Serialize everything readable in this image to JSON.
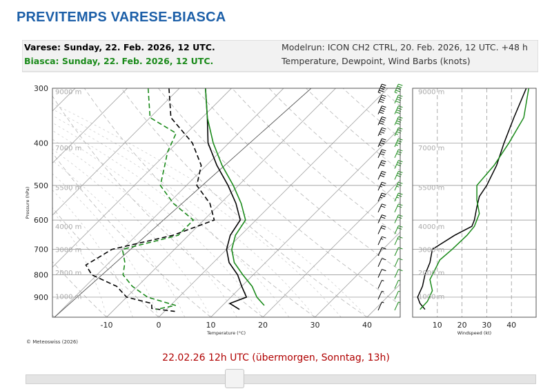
{
  "header": {
    "title": "PREVITEMPS VARESE-BIASCA"
  },
  "info": {
    "line1": "Varese: Sunday, 22. Feb. 2026, 12 UTC.",
    "line2": "Biasca: Sunday, 22. Feb. 2026, 12 UTC.",
    "model": "Modelrun: ICON CH2 CTRL, 20. Feb. 2026, 12 UTC. +48 h",
    "desc": "Temperature, Dewpoint, Wind Barbs (knots)"
  },
  "colors": {
    "varese": "#000000",
    "biasca": "#1a8a1a",
    "title": "#1c5fa8",
    "slider_caption": "#b00000"
  },
  "chart_data": [
    {
      "type": "line",
      "title": "",
      "xlabel": "Temperature (°C)",
      "ylabel": "Pressure (hPa)",
      "y_scale": "log",
      "xlim": [
        -20,
        47
      ],
      "ylim": [
        1000,
        300
      ],
      "x_ticks": [
        -10,
        0,
        10,
        20,
        30,
        40
      ],
      "y_ticks": [
        300,
        400,
        500,
        600,
        700,
        800,
        900
      ],
      "height_labels": [
        "9000 m",
        "7000 m",
        "5500 m",
        "4000 m",
        "3000 m",
        "2000 m",
        "1000 m"
      ],
      "height_pressures": [
        305,
        410,
        505,
        620,
        700,
        790,
        895
      ],
      "series": [
        {
          "name": "Varese",
          "kind": "temperature",
          "color": "#000000",
          "points": [
            [
              300,
              -35
            ],
            [
              350,
              -29
            ],
            [
              400,
              -24
            ],
            [
              450,
              -18
            ],
            [
              500,
              -12
            ],
            [
              550,
              -7
            ],
            [
              600,
              -3
            ],
            [
              650,
              -2
            ],
            [
              700,
              0
            ],
            [
              750,
              3
            ],
            [
              800,
              7
            ],
            [
              850,
              10
            ],
            [
              900,
              13
            ],
            [
              930,
              11
            ],
            [
              960,
              14
            ]
          ]
        },
        {
          "name": "Varese",
          "kind": "dewpoint",
          "color": "#000000",
          "points": [
            [
              300,
              -42
            ],
            [
              350,
              -36
            ],
            [
              400,
              -27
            ],
            [
              450,
              -21
            ],
            [
              500,
              -18
            ],
            [
              550,
              -12
            ],
            [
              600,
              -8
            ],
            [
              650,
              -13
            ],
            [
              700,
              -22
            ],
            [
              760,
              -24
            ],
            [
              800,
              -21
            ],
            [
              850,
              -14
            ],
            [
              900,
              -10
            ],
            [
              930,
              -4
            ],
            [
              955,
              -3
            ],
            [
              970,
              2
            ]
          ]
        },
        {
          "name": "Biasca",
          "kind": "temperature",
          "color": "#1a8a1a",
          "points": [
            [
              300,
              -35
            ],
            [
              350,
              -29
            ],
            [
              400,
              -23
            ],
            [
              450,
              -17
            ],
            [
              500,
              -11
            ],
            [
              550,
              -6
            ],
            [
              600,
              -2
            ],
            [
              650,
              -1
            ],
            [
              700,
              1
            ],
            [
              750,
              4
            ],
            [
              800,
              8
            ],
            [
              850,
              12
            ],
            [
              900,
              15
            ],
            [
              940,
              18
            ]
          ]
        },
        {
          "name": "Biasca",
          "kind": "dewpoint",
          "color": "#1a8a1a",
          "points": [
            [
              300,
              -46
            ],
            [
              350,
              -40
            ],
            [
              380,
              -32
            ],
            [
              420,
              -30
            ],
            [
              450,
              -28
            ],
            [
              500,
              -25
            ],
            [
              550,
              -19
            ],
            [
              600,
              -12
            ],
            [
              650,
              -12
            ],
            [
              700,
              -20
            ],
            [
              750,
              -17
            ],
            [
              800,
              -15
            ],
            [
              850,
              -11
            ],
            [
              900,
              -6
            ],
            [
              940,
              1
            ],
            [
              960,
              -2
            ]
          ]
        }
      ],
      "wind_barbs": {
        "varese_speeds_kt": [
          45,
          42,
          40,
          38,
          36,
          34,
          32,
          30,
          28,
          27,
          25,
          22,
          20,
          18,
          15,
          12,
          10,
          8,
          6,
          5,
          3
        ],
        "biasca_speeds_kt": [
          44,
          42,
          40,
          38,
          36,
          34,
          32,
          30,
          28,
          26,
          24,
          22,
          20,
          18,
          15,
          12,
          10,
          8,
          6,
          4,
          3
        ]
      },
      "footer": "© Meteoswiss (2026)"
    },
    {
      "type": "line",
      "title": "",
      "xlabel": "Windspeed (kt)",
      "ylabel": "",
      "y_scale": "log",
      "xlim": [
        0,
        50
      ],
      "ylim": [
        1000,
        300
      ],
      "x_ticks": [
        10,
        20,
        30,
        40
      ],
      "height_labels": [
        "9000 m",
        "7000 m",
        "5500 m",
        "4000 m",
        "3000 m",
        "2000 m",
        "1000 m"
      ],
      "series": [
        {
          "name": "Varese",
          "color": "#000000",
          "points": [
            [
              300,
              46
            ],
            [
              350,
              41
            ],
            [
              400,
              37
            ],
            [
              450,
              34
            ],
            [
              500,
              30
            ],
            [
              530,
              27
            ],
            [
              560,
              26
            ],
            [
              600,
              25
            ],
            [
              620,
              24
            ],
            [
              650,
              17
            ],
            [
              700,
              8
            ],
            [
              750,
              7
            ],
            [
              800,
              5
            ],
            [
              850,
              4
            ],
            [
              900,
              2
            ],
            [
              930,
              3
            ],
            [
              960,
              5
            ]
          ]
        },
        {
          "name": "Biasca",
          "color": "#1a8a1a",
          "points": [
            [
              300,
              47
            ],
            [
              350,
              45
            ],
            [
              400,
              39
            ],
            [
              450,
              33
            ],
            [
              500,
              26
            ],
            [
              540,
              26
            ],
            [
              580,
              27
            ],
            [
              620,
              25
            ],
            [
              650,
              22
            ],
            [
              700,
              16
            ],
            [
              740,
              11
            ],
            [
              780,
              9
            ],
            [
              820,
              7
            ],
            [
              870,
              8
            ],
            [
              920,
              6
            ],
            [
              960,
              3
            ]
          ]
        }
      ]
    }
  ],
  "slider": {
    "caption": "22.02.26 12h UTC (übermorgen, Sonntag, 13h)",
    "value": 0.41
  }
}
